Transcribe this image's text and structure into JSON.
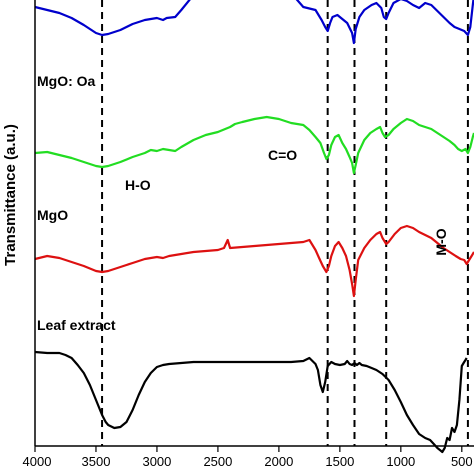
{
  "chart_data": {
    "type": "line",
    "xlabel": "",
    "ylabel": "Transmittance (a.u.)",
    "xlim": [
      4000,
      400
    ],
    "x_reversed": true,
    "x_ticks": [
      4000,
      3500,
      3000,
      2500,
      2000,
      1500,
      1000,
      500
    ],
    "y_ticks_labeled": false,
    "grid": false,
    "series": [
      {
        "name": "",
        "color": "#0000cc",
        "points": [
          [
            4000,
            -18
          ],
          [
            3900,
            -15
          ],
          [
            3800,
            -12
          ],
          [
            3700,
            -7
          ],
          [
            3600,
            0
          ],
          [
            3500,
            8
          ],
          [
            3450,
            10
          ],
          [
            3400,
            9
          ],
          [
            3300,
            5
          ],
          [
            3200,
            -1
          ],
          [
            3100,
            -5
          ],
          [
            3000,
            -7
          ],
          [
            2950,
            -5
          ],
          [
            2920,
            -7
          ],
          [
            2850,
            -8
          ],
          [
            2800,
            -15
          ],
          [
            2700,
            -30
          ],
          [
            2600,
            -40
          ],
          [
            2500,
            -45
          ],
          [
            2360,
            -48
          ],
          [
            2200,
            -52
          ],
          [
            2100,
            -50
          ],
          [
            2000,
            -46
          ],
          [
            1900,
            -32
          ],
          [
            1800,
            -18
          ],
          [
            1700,
            -15
          ],
          [
            1650,
            -5
          ],
          [
            1620,
            2
          ],
          [
            1600,
            6
          ],
          [
            1580,
            -2
          ],
          [
            1560,
            -8
          ],
          [
            1520,
            -10
          ],
          [
            1480,
            -6
          ],
          [
            1440,
            -2
          ],
          [
            1400,
            8
          ],
          [
            1385,
            18
          ],
          [
            1370,
            4
          ],
          [
            1340,
            -8
          ],
          [
            1300,
            -15
          ],
          [
            1240,
            -20
          ],
          [
            1200,
            -22
          ],
          [
            1160,
            -17
          ],
          [
            1140,
            -8
          ],
          [
            1120,
            -6
          ],
          [
            1100,
            -12
          ],
          [
            1060,
            -22
          ],
          [
            1000,
            -26
          ],
          [
            950,
            -24
          ],
          [
            900,
            -20
          ],
          [
            850,
            -17
          ],
          [
            800,
            -22
          ],
          [
            750,
            -20
          ],
          [
            700,
            -14
          ],
          [
            650,
            -8
          ],
          [
            600,
            -2
          ],
          [
            560,
            2
          ],
          [
            520,
            4
          ],
          [
            480,
            6
          ],
          [
            450,
            10
          ],
          [
            430,
            2
          ],
          [
            410,
            -20
          ],
          [
            400,
            -30
          ]
        ]
      },
      {
        "name": "MgO: Oa",
        "color": "#22dd22",
        "points": [
          [
            4000,
            -2
          ],
          [
            3900,
            -3
          ],
          [
            3800,
            0
          ],
          [
            3700,
            3
          ],
          [
            3600,
            7
          ],
          [
            3500,
            11
          ],
          [
            3450,
            12
          ],
          [
            3400,
            11
          ],
          [
            3300,
            7
          ],
          [
            3200,
            2
          ],
          [
            3100,
            -2
          ],
          [
            3050,
            -5
          ],
          [
            3000,
            -4
          ],
          [
            2950,
            -6
          ],
          [
            2900,
            -5
          ],
          [
            2850,
            -4
          ],
          [
            2800,
            -8
          ],
          [
            2700,
            -15
          ],
          [
            2600,
            -20
          ],
          [
            2500,
            -23
          ],
          [
            2400,
            -28
          ],
          [
            2360,
            -31
          ],
          [
            2300,
            -33
          ],
          [
            2200,
            -36
          ],
          [
            2100,
            -38
          ],
          [
            2000,
            -36
          ],
          [
            1900,
            -32
          ],
          [
            1800,
            -30
          ],
          [
            1750,
            -25
          ],
          [
            1700,
            -18
          ],
          [
            1660,
            -12
          ],
          [
            1630,
            -2
          ],
          [
            1610,
            4
          ],
          [
            1590,
            0
          ],
          [
            1570,
            -10
          ],
          [
            1540,
            -18
          ],
          [
            1510,
            -20
          ],
          [
            1480,
            -12
          ],
          [
            1450,
            -6
          ],
          [
            1420,
            2
          ],
          [
            1400,
            8
          ],
          [
            1385,
            18
          ],
          [
            1370,
            10
          ],
          [
            1350,
            -2
          ],
          [
            1300,
            -15
          ],
          [
            1250,
            -22
          ],
          [
            1200,
            -26
          ],
          [
            1170,
            -28
          ],
          [
            1150,
            -22
          ],
          [
            1130,
            -18
          ],
          [
            1100,
            -20
          ],
          [
            1060,
            -26
          ],
          [
            1000,
            -32
          ],
          [
            950,
            -36
          ],
          [
            900,
            -34
          ],
          [
            850,
            -30
          ],
          [
            800,
            -28
          ],
          [
            750,
            -26
          ],
          [
            700,
            -22
          ],
          [
            650,
            -18
          ],
          [
            600,
            -14
          ],
          [
            560,
            -10
          ],
          [
            530,
            -6
          ],
          [
            500,
            -4
          ],
          [
            470,
            -6
          ],
          [
            450,
            -2
          ],
          [
            430,
            -8
          ],
          [
            410,
            -18
          ],
          [
            400,
            -22
          ]
        ]
      },
      {
        "name": "MgO",
        "color": "#dd1111",
        "points": [
          [
            4000,
            -3
          ],
          [
            3900,
            -6
          ],
          [
            3800,
            -4
          ],
          [
            3700,
            0
          ],
          [
            3600,
            4
          ],
          [
            3500,
            9
          ],
          [
            3450,
            10
          ],
          [
            3400,
            9
          ],
          [
            3300,
            5
          ],
          [
            3200,
            1
          ],
          [
            3100,
            -3
          ],
          [
            3000,
            -5
          ],
          [
            2950,
            -4
          ],
          [
            2900,
            -6
          ],
          [
            2800,
            -8
          ],
          [
            2700,
            -10
          ],
          [
            2600,
            -11
          ],
          [
            2500,
            -12
          ],
          [
            2450,
            -14
          ],
          [
            2420,
            -22
          ],
          [
            2400,
            -14
          ],
          [
            2300,
            -15
          ],
          [
            2200,
            -16
          ],
          [
            2100,
            -17
          ],
          [
            2000,
            -18
          ],
          [
            1900,
            -19
          ],
          [
            1800,
            -20
          ],
          [
            1750,
            -22
          ],
          [
            1700,
            -12
          ],
          [
            1670,
            -4
          ],
          [
            1640,
            4
          ],
          [
            1610,
            10
          ],
          [
            1590,
            4
          ],
          [
            1570,
            -6
          ],
          [
            1540,
            -16
          ],
          [
            1510,
            -20
          ],
          [
            1480,
            -14
          ],
          [
            1450,
            -6
          ],
          [
            1420,
            8
          ],
          [
            1400,
            22
          ],
          [
            1385,
            34
          ],
          [
            1370,
            18
          ],
          [
            1350,
            -2
          ],
          [
            1300,
            -14
          ],
          [
            1250,
            -22
          ],
          [
            1200,
            -28
          ],
          [
            1170,
            -30
          ],
          [
            1150,
            -24
          ],
          [
            1120,
            -18
          ],
          [
            1100,
            -20
          ],
          [
            1050,
            -28
          ],
          [
            1000,
            -34
          ],
          [
            950,
            -36
          ],
          [
            900,
            -34
          ],
          [
            850,
            -30
          ],
          [
            800,
            -27
          ],
          [
            750,
            -24
          ],
          [
            700,
            -19
          ],
          [
            650,
            -14
          ],
          [
            600,
            -10
          ],
          [
            550,
            -6
          ],
          [
            510,
            -3
          ],
          [
            480,
            -2
          ],
          [
            460,
            2
          ],
          [
            440,
            -2
          ],
          [
            420,
            -6
          ],
          [
            400,
            -10
          ]
        ]
      },
      {
        "name": "Leaf extract",
        "color": "#000000",
        "points": [
          [
            4000,
            -18
          ],
          [
            3900,
            -17
          ],
          [
            3800,
            -17
          ],
          [
            3750,
            -15
          ],
          [
            3700,
            -12
          ],
          [
            3650,
            -5
          ],
          [
            3600,
            3
          ],
          [
            3550,
            15
          ],
          [
            3500,
            30
          ],
          [
            3450,
            45
          ],
          [
            3420,
            52
          ],
          [
            3400,
            55
          ],
          [
            3350,
            58
          ],
          [
            3300,
            57
          ],
          [
            3250,
            52
          ],
          [
            3200,
            40
          ],
          [
            3150,
            25
          ],
          [
            3100,
            12
          ],
          [
            3050,
            3
          ],
          [
            3000,
            -3
          ],
          [
            2950,
            -5
          ],
          [
            2900,
            -6
          ],
          [
            2800,
            -7
          ],
          [
            2700,
            -8
          ],
          [
            2600,
            -8
          ],
          [
            2500,
            -8
          ],
          [
            2400,
            -8
          ],
          [
            2300,
            -8
          ],
          [
            2200,
            -8
          ],
          [
            2100,
            -8
          ],
          [
            2000,
            -8
          ],
          [
            1900,
            -8
          ],
          [
            1800,
            -9
          ],
          [
            1750,
            -12
          ],
          [
            1700,
            -6
          ],
          [
            1680,
            0
          ],
          [
            1660,
            15
          ],
          [
            1640,
            22
          ],
          [
            1620,
            12
          ],
          [
            1600,
            -4
          ],
          [
            1570,
            -8
          ],
          [
            1540,
            -6
          ],
          [
            1500,
            -5
          ],
          [
            1460,
            -6
          ],
          [
            1440,
            -9
          ],
          [
            1420,
            -6
          ],
          [
            1400,
            -5
          ],
          [
            1380,
            -7
          ],
          [
            1360,
            -5
          ],
          [
            1340,
            -7
          ],
          [
            1320,
            -5
          ],
          [
            1280,
            -4
          ],
          [
            1240,
            -2
          ],
          [
            1200,
            0
          ],
          [
            1150,
            4
          ],
          [
            1100,
            10
          ],
          [
            1050,
            20
          ],
          [
            1000,
            32
          ],
          [
            950,
            45
          ],
          [
            900,
            55
          ],
          [
            850,
            64
          ],
          [
            800,
            68
          ],
          [
            760,
            70
          ],
          [
            730,
            74
          ],
          [
            700,
            78
          ],
          [
            680,
            80
          ],
          [
            660,
            82
          ],
          [
            640,
            78
          ],
          [
            620,
            68
          ],
          [
            600,
            70
          ],
          [
            580,
            58
          ],
          [
            560,
            62
          ],
          [
            540,
            55
          ],
          [
            520,
            30
          ],
          [
            500,
            -4
          ],
          [
            490,
            -6
          ],
          [
            480,
            -8
          ],
          [
            470,
            -10
          ],
          [
            460,
            -12
          ]
        ]
      }
    ],
    "annotations": {
      "mgo_oa": "MgO: Oa",
      "mgo": "MgO",
      "leaf_extract": "Leaf extract",
      "h_o": "H-O",
      "c_o": "C=O",
      "m_o": "M-O"
    },
    "reference_lines_x": [
      3450,
      1600,
      1380,
      1120,
      450
    ]
  }
}
